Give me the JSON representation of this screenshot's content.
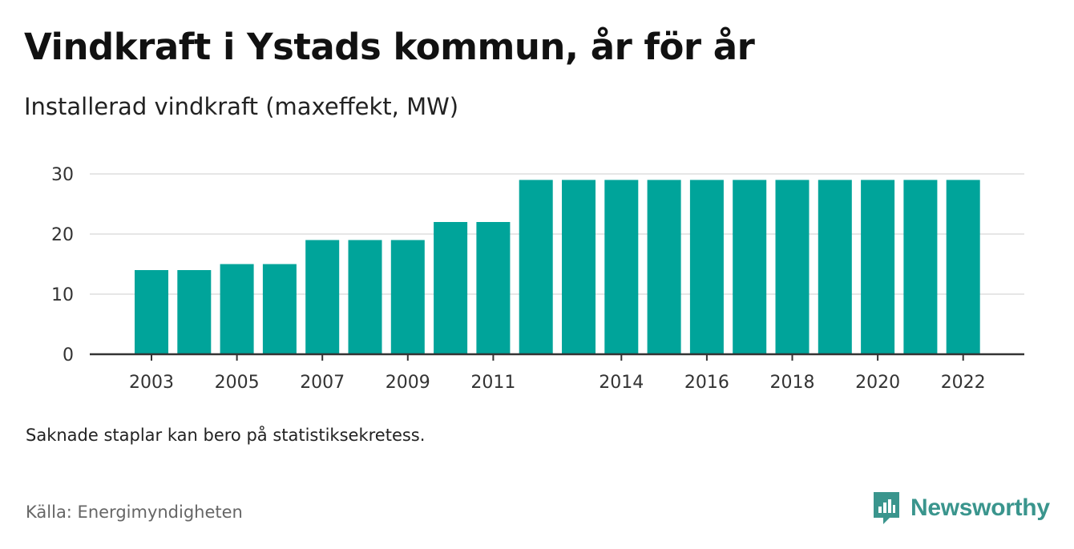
{
  "colors": {
    "bar": "#00a49a",
    "grid": "#dddddd",
    "axis": "#333333",
    "brand": "#3a958d"
  },
  "footer": {
    "note": "Saknade staplar kan bero på statistiksekretess.",
    "source": "Källa: Energimyndigheten"
  },
  "brand": {
    "name": "Newsworthy",
    "icon": "newsworthy-logo-icon"
  },
  "chart_data": {
    "type": "bar",
    "title": "Vindkraft i Ystads kommun, år för år",
    "subtitle": "Installerad vindkraft (maxeffekt, MW)",
    "xlabel": "",
    "ylabel": "",
    "categories": [
      2003,
      2004,
      2005,
      2006,
      2007,
      2008,
      2009,
      2010,
      2011,
      2012,
      2013,
      2014,
      2015,
      2016,
      2017,
      2018,
      2019,
      2020,
      2021,
      2022
    ],
    "values": [
      14,
      14,
      15,
      15,
      19,
      19,
      19,
      22,
      22,
      29,
      29,
      29,
      29,
      29,
      29,
      29,
      29,
      29,
      29,
      29
    ],
    "x_tick_labels": [
      "2003",
      "2005",
      "2007",
      "2009",
      "2011",
      "2014",
      "2016",
      "2018",
      "2020",
      "2022"
    ],
    "y_ticks": [
      0,
      10,
      20,
      30
    ],
    "ylim": [
      0,
      30
    ],
    "grid": true,
    "legend": "none"
  }
}
